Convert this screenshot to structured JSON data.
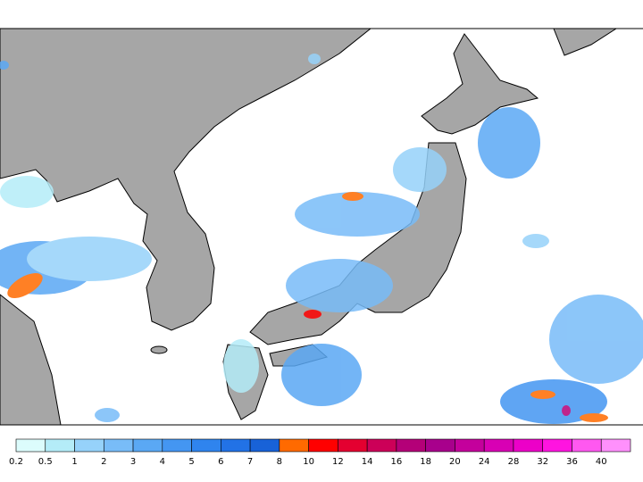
{
  "colorbar": {
    "levels": [
      0.2,
      0.5,
      1,
      2,
      3,
      4,
      5,
      6,
      7,
      8,
      10,
      12,
      14,
      16,
      18,
      20,
      24,
      28,
      32,
      36,
      40
    ],
    "colors": [
      "#dcfcfc",
      "#b4ecf8",
      "#96d2fa",
      "#78bcf8",
      "#5aa8f4",
      "#4496f2",
      "#2f84ee",
      "#2272e6",
      "#1862d8",
      "#ff6a00",
      "#ff0000",
      "#e40030",
      "#cc0058",
      "#b40078",
      "#a8008c",
      "#c4009c",
      "#d800b4",
      "#ec00c8",
      "#ff14e0",
      "#ff58f0",
      "#ff90fc"
    ]
  }
}
